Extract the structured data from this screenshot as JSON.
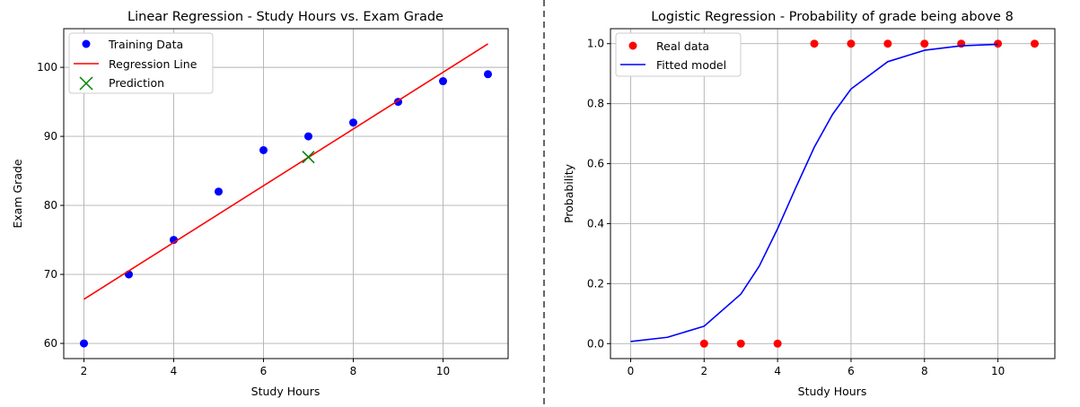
{
  "chart_data": [
    {
      "type": "scatter",
      "title": "Linear Regression - Study Hours vs. Exam Grade",
      "xlabel": "Study Hours",
      "ylabel": "Exam Grade",
      "xlim": [
        1.55,
        11.45
      ],
      "ylim": [
        57.8,
        105.6
      ],
      "xticks": [
        2,
        4,
        6,
        8,
        10
      ],
      "yticks": [
        60,
        70,
        80,
        90,
        100
      ],
      "grid": true,
      "legend_position": "top-left",
      "series": [
        {
          "name": "Training Data",
          "kind": "scatter",
          "color": "#0000ff",
          "x": [
            2,
            3,
            4,
            5,
            6,
            7,
            8,
            9,
            10,
            11
          ],
          "y": [
            60,
            70,
            75,
            82,
            88,
            90,
            92,
            95,
            98,
            99
          ]
        },
        {
          "name": "Regression Line",
          "kind": "line",
          "color": "#ff0000",
          "x": [
            2,
            11
          ],
          "y": [
            66.4,
            103.4
          ]
        },
        {
          "name": "Prediction",
          "kind": "x-marker",
          "color": "#008000",
          "x": [
            7
          ],
          "y": [
            87
          ]
        }
      ]
    },
    {
      "type": "line",
      "title": "Logistic Regression - Probability of grade being above 8",
      "xlabel": "Study Hours",
      "ylabel": "Probability",
      "xlim": [
        -0.55,
        11.55
      ],
      "ylim": [
        -0.05,
        1.05
      ],
      "xticks": [
        0,
        2,
        4,
        6,
        8,
        10
      ],
      "yticks": [
        0.0,
        0.2,
        0.4,
        0.6,
        0.8,
        1.0
      ],
      "grid": true,
      "legend_position": "top-left",
      "series": [
        {
          "name": "Real data",
          "kind": "scatter",
          "color": "#ff0000",
          "x": [
            2,
            3,
            4,
            5,
            6,
            7,
            8,
            9,
            10,
            11
          ],
          "y": [
            0,
            0,
            0,
            1,
            1,
            1,
            1,
            1,
            1,
            1
          ]
        },
        {
          "name": "Fitted model",
          "kind": "line",
          "color": "#0000ff",
          "x": [
            0,
            1,
            2,
            3,
            3.5,
            4,
            4.5,
            5,
            5.5,
            6,
            7,
            8,
            9,
            10
          ],
          "y": [
            0.007,
            0.021,
            0.058,
            0.165,
            0.258,
            0.383,
            0.521,
            0.655,
            0.765,
            0.849,
            0.94,
            0.978,
            0.993,
            0.998
          ]
        }
      ]
    }
  ],
  "tick_labels": {
    "left_x": [
      "2",
      "4",
      "6",
      "8",
      "10"
    ],
    "left_y": [
      "60",
      "70",
      "80",
      "90",
      "100"
    ],
    "right_x": [
      "0",
      "2",
      "4",
      "6",
      "8",
      "10"
    ],
    "right_y": [
      "0.0",
      "0.2",
      "0.4",
      "0.6",
      "0.8",
      "1.0"
    ]
  },
  "colors": {
    "grid": "#b0b0b0",
    "axes": "#000000",
    "divider": "#000000"
  }
}
